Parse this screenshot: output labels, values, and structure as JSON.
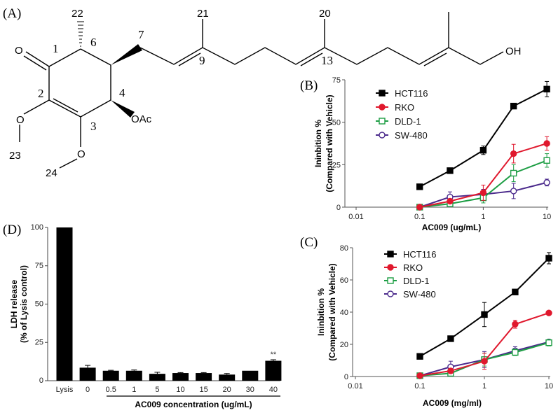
{
  "panel_labels": {
    "A": "(A)",
    "B": "(B)",
    "C": "(C)",
    "D": "(D)"
  },
  "structure": {
    "atoms": {
      "carbonyl_o": "O",
      "o2": "O",
      "o3": "O",
      "oac": "OAc",
      "oh": "OH"
    },
    "numbers": {
      "n1": "1",
      "n2": "2",
      "n3": "3",
      "n4": "4",
      "n6": "6",
      "n7": "7",
      "n9": "9",
      "n13": "13",
      "n20": "20",
      "n21": "21",
      "n22": "22",
      "n23": "23",
      "n24": "24"
    }
  },
  "chart_data": [
    {
      "id": "B",
      "type": "line",
      "xscale": "log",
      "xlim": [
        0.01,
        10
      ],
      "ylim": [
        0,
        75
      ],
      "xticks": [
        "0.01",
        "0.1",
        "1",
        "10"
      ],
      "yticks": [
        "0",
        "25",
        "50",
        "75"
      ],
      "xlabel": "AC009 (ug/mL)",
      "ylabel": [
        "Ininbition %",
        "(Compared with Vehicle)"
      ],
      "legend": "top-left",
      "x": [
        0.1,
        0.3,
        1,
        3,
        10
      ],
      "series": [
        {
          "name": "HCT116",
          "color": "#000000",
          "marker": "filled-square",
          "values": [
            12,
            21.5,
            33.5,
            59.5,
            69.5
          ],
          "errors": [
            1,
            1.5,
            2.5,
            1,
            4.5
          ]
        },
        {
          "name": "RKO",
          "color": "#e0182d",
          "marker": "filled-circle",
          "values": [
            0,
            3.5,
            8.5,
            31.5,
            37.5
          ],
          "errors": [
            0,
            1,
            4.5,
            5.5,
            4
          ]
        },
        {
          "name": "DLD-1",
          "color": "#1e9e45",
          "marker": "open-square",
          "values": [
            0,
            2,
            5.5,
            20,
            27.5
          ],
          "errors": [
            0,
            1,
            3,
            5,
            4
          ]
        },
        {
          "name": "SW-480",
          "color": "#4b2a8c",
          "marker": "open-circle",
          "values": [
            0,
            6,
            7.5,
            9.5,
            14.5
          ],
          "errors": [
            0,
            3,
            3,
            4.5,
            2
          ]
        }
      ]
    },
    {
      "id": "C",
      "type": "line",
      "xscale": "log",
      "xlim": [
        0.01,
        10
      ],
      "ylim": [
        0,
        80
      ],
      "xticks": [
        "0.01",
        "0.1",
        "1",
        "10"
      ],
      "yticks": [
        "0",
        "20",
        "40",
        "60",
        "80"
      ],
      "xlabel": "AC009 (mg/ml)",
      "ylabel": [
        "Ininbition %",
        "(Compared with Vehicle)"
      ],
      "legend": "top-left",
      "x": [
        0.1,
        0.3,
        1,
        3,
        10
      ],
      "series": [
        {
          "name": "HCT116",
          "color": "#000000",
          "marker": "filled-square",
          "values": [
            12.5,
            23.5,
            38.5,
            52.5,
            73.5
          ],
          "errors": [
            1.5,
            1,
            7.5,
            1,
            3.5
          ]
        },
        {
          "name": "RKO",
          "color": "#e0182d",
          "marker": "filled-circle",
          "values": [
            0.5,
            3.5,
            9.5,
            32.5,
            39.5
          ],
          "errors": [
            0.5,
            1.5,
            5,
            2.5,
            0.5
          ]
        },
        {
          "name": "DLD-1",
          "color": "#1e9e45",
          "marker": "open-square",
          "values": [
            0.5,
            2,
            10.5,
            15,
            21
          ],
          "errors": [
            0.5,
            1,
            4,
            2,
            2
          ]
        },
        {
          "name": "SW-480",
          "color": "#4b2a8c",
          "marker": "open-circle",
          "values": [
            0.5,
            6,
            10.5,
            16,
            21.5
          ],
          "errors": [
            0.5,
            3.5,
            5,
            2.5,
            1.5
          ]
        }
      ]
    },
    {
      "id": "D",
      "type": "bar",
      "ylim": [
        0,
        100
      ],
      "yticks": [
        "0",
        "25",
        "50",
        "75",
        "100"
      ],
      "categories": [
        "Lysis",
        "0",
        "0.5",
        "1",
        "5",
        "10",
        "15",
        "20",
        "30",
        "40"
      ],
      "values": [
        100,
        8.5,
        6.5,
        6.5,
        4.5,
        5,
        5,
        4,
        6.5,
        13
      ],
      "errors": [
        0,
        1.5,
        0.3,
        0.5,
        1,
        0.3,
        0.3,
        0.7,
        0,
        0.7
      ],
      "annotations": [
        {
          "category": "40",
          "text": "**"
        }
      ],
      "xlabel": "AC009 concentration (ug/mL)",
      "ylabel": [
        "LDH release",
        "(% of Lysis control)"
      ],
      "color": "#000000"
    }
  ]
}
